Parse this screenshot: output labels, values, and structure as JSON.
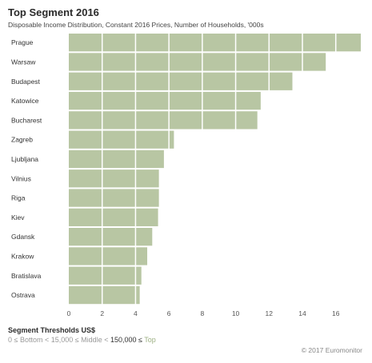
{
  "chart_data": {
    "type": "bar",
    "orientation": "horizontal",
    "title": "Top Segment 2016",
    "subtitle": "Disposable Income Distribution, Constant 2016 Prices, Number of Households, '000s",
    "categories": [
      "Prague",
      "Warsaw",
      "Budapest",
      "Katowice",
      "Bucharest",
      "Zagreb",
      "Ljubljana",
      "Vilnius",
      "Riga",
      "Kiev",
      "Gdansk",
      "Krakow",
      "Bratislava",
      "Ostrava"
    ],
    "values": [
      17.5,
      15.4,
      13.4,
      11.5,
      11.3,
      6.3,
      5.7,
      5.4,
      5.4,
      5.35,
      5.0,
      4.7,
      4.35,
      4.25
    ],
    "xlim": [
      0,
      17.5
    ],
    "xticks": [
      0,
      2,
      4,
      6,
      8,
      10,
      12,
      14,
      16
    ],
    "xlabel": "",
    "ylabel": "",
    "bar_color": "#b8c6a3",
    "grid": true
  },
  "thresholds": {
    "title": "Segment Thresholds US$",
    "prefix": "0 ≤ Bottom < 15,000 ≤ Middle < ",
    "value": "150,000 ≤ ",
    "segment": "Top"
  },
  "footer": {
    "copyright": "© 2017 Euromonitor"
  }
}
